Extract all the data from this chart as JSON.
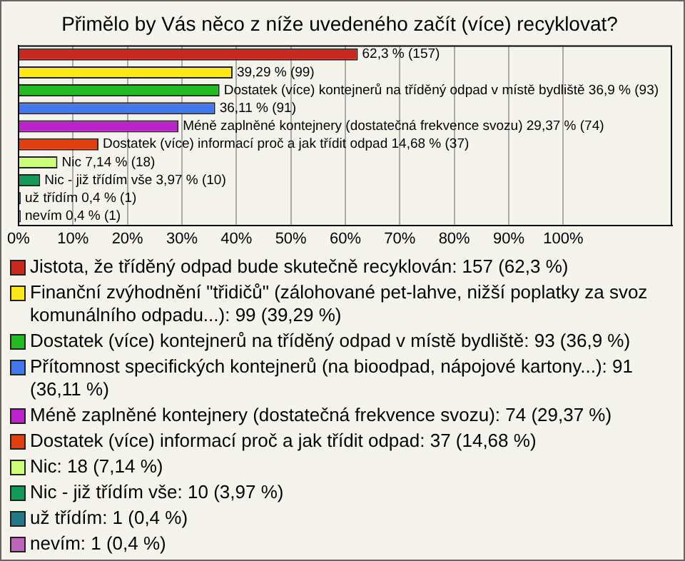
{
  "chart_data": {
    "type": "bar",
    "orientation": "horizontal",
    "title": "Přimělo by Vás něco z níže uvedeného začít (více) recyklovat?",
    "categories": [
      null,
      null,
      null,
      null,
      null,
      null,
      null,
      null,
      null,
      null
    ],
    "series": [
      {
        "name": "Jistota, že tříděný odpad bude skutečně recyklován: 157 (62,3 %)",
        "color": "#c8281e",
        "values": [
          62.3,
          null,
          null,
          null,
          null,
          null,
          null,
          null,
          null,
          null
        ],
        "value_labels": [
          "62,3 % (157)",
          null,
          null,
          null,
          null,
          null,
          null,
          null,
          null,
          null
        ]
      },
      {
        "name": "Finanční zvýhodnění \"třidičů\" (zálohované pet-lahve, nižší poplatky za svoz komunálního odpadu...): 99 (39,29 %)",
        "color": "#ffe81a",
        "values": [
          null,
          39.29,
          null,
          null,
          null,
          null,
          null,
          null,
          null,
          null
        ],
        "value_labels": [
          null,
          "39,29 % (99)",
          null,
          null,
          null,
          null,
          null,
          null,
          null,
          null
        ]
      },
      {
        "name": "Dostatek (více) kontejnerů na tříděný odpad v místě bydliště: 93 (36,9 %)",
        "color": "#22bb22",
        "values": [
          null,
          null,
          36.9,
          null,
          null,
          null,
          null,
          null,
          null,
          null
        ],
        "value_labels": [
          null,
          null,
          "Dostatek (více) kontejnerů na tříděný odpad v místě bydliště 36,9 % (93)",
          null,
          null,
          null,
          null,
          null,
          null,
          null
        ]
      },
      {
        "name": "Přítomnost specifických kontejnerů (na bioodpad, nápojové kartony...): 91 (36,11 %)",
        "color": "#4477ee",
        "values": [
          null,
          null,
          null,
          36.11,
          null,
          null,
          null,
          null,
          null,
          null
        ],
        "value_labels": [
          null,
          null,
          null,
          "36,11 % (91)",
          null,
          null,
          null,
          null,
          null,
          null
        ]
      },
      {
        "name": "Méně zaplněné kontejnery (dostatečná frekvence svozu): 74 (29,37 %)",
        "color": "#bb22cc",
        "values": [
          null,
          null,
          null,
          null,
          29.37,
          null,
          null,
          null,
          null,
          null
        ],
        "value_labels": [
          null,
          null,
          null,
          null,
          "Méně zaplněné kontejnery (dostatečná frekvence svozu) 29,37 % (74)",
          null,
          null,
          null,
          null,
          null
        ]
      },
      {
        "name": "Dostatek (více) informací proč a jak třídit odpad: 37 (14,68 %)",
        "color": "#e0400f",
        "values": [
          null,
          null,
          null,
          null,
          null,
          14.68,
          null,
          null,
          null,
          null
        ],
        "value_labels": [
          null,
          null,
          null,
          null,
          null,
          "Dostatek (více) informací proč a jak třídit odpad 14,68 % (37)",
          null,
          null,
          null,
          null
        ]
      },
      {
        "name": "Nic: 18 (7,14 %)",
        "color": "#ccff77",
        "values": [
          null,
          null,
          null,
          null,
          null,
          null,
          7.14,
          null,
          null,
          null
        ],
        "value_labels": [
          null,
          null,
          null,
          null,
          null,
          null,
          "Nic 7,14 % (18)",
          null,
          null,
          null
        ]
      },
      {
        "name": "Nic - již třídím vše: 10 (3,97 %)",
        "color": "#119955",
        "values": [
          null,
          null,
          null,
          null,
          null,
          null,
          null,
          3.97,
          null,
          null
        ],
        "value_labels": [
          null,
          null,
          null,
          null,
          null,
          null,
          null,
          "Nic - již třídím vše 3,97 % (10)",
          null,
          null
        ]
      },
      {
        "name": "už třídím: 1 (0,4 %)",
        "color": "#227788",
        "values": [
          null,
          null,
          null,
          null,
          null,
          null,
          null,
          null,
          0.4,
          null
        ],
        "value_labels": [
          null,
          null,
          null,
          null,
          null,
          null,
          null,
          null,
          "už třídím 0,4 % (1)",
          null
        ]
      },
      {
        "name": "nevím: 1 (0,4 %)",
        "color": "#bb66bb",
        "values": [
          null,
          null,
          null,
          null,
          null,
          null,
          null,
          null,
          null,
          0.4
        ],
        "value_labels": [
          null,
          null,
          null,
          null,
          null,
          null,
          null,
          null,
          null,
          "nevím 0,4 % (1)"
        ]
      }
    ],
    "xlim": [
      0,
      120
    ],
    "xticks": [
      {
        "value": 0,
        "label": "0%"
      },
      {
        "value": 10,
        "label": "10%"
      },
      {
        "value": 20,
        "label": "20%"
      },
      {
        "value": 30,
        "label": "30%"
      },
      {
        "value": 40,
        "label": "40%"
      },
      {
        "value": 50,
        "label": "50%"
      },
      {
        "value": 60,
        "label": "60%"
      },
      {
        "value": 70,
        "label": "70%"
      },
      {
        "value": 80,
        "label": "80%"
      },
      {
        "value": 90,
        "label": "90%"
      },
      {
        "value": 100,
        "label": "100%"
      }
    ],
    "grid": "x",
    "tick_labels": "x",
    "legend": "bottom"
  }
}
